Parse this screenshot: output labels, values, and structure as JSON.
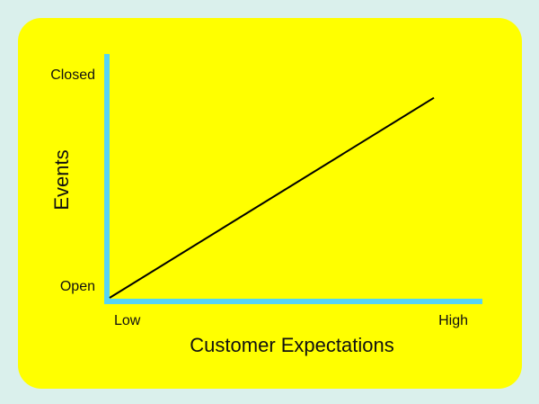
{
  "colors": {
    "background": "#daf0ec",
    "panel": "#ffff00",
    "axis": "#55d4f5",
    "line": "#000000"
  },
  "chart_data": {
    "type": "line",
    "xlabel": "Customer Expectations",
    "ylabel": "Events",
    "x_ticks": [
      "Low",
      "High"
    ],
    "y_ticks": [
      "Open",
      "Closed"
    ],
    "xlim": [
      0,
      1
    ],
    "ylim": [
      0,
      1
    ],
    "grid": false,
    "series": [
      {
        "x": [
          0,
          1
        ],
        "y": [
          0,
          0.9
        ]
      }
    ]
  }
}
